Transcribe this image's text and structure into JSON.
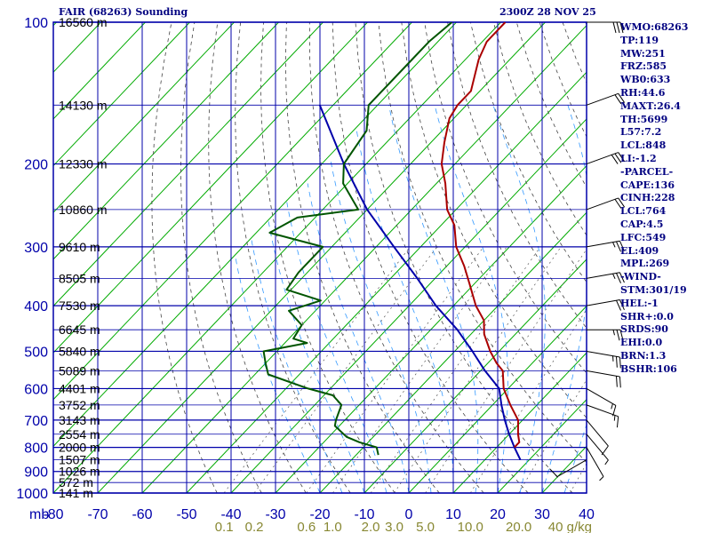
{
  "header": {
    "title": "FAIR (68263) Sounding",
    "timestamp": "2300Z 28 NOV 25"
  },
  "indices": [
    "WMO:68263",
    "TP:119",
    "MW:251",
    "FRZ:585",
    "WB0:633",
    "RH:44.6",
    "MAXT:26.4",
    "TH:5699",
    "L57:7.2",
    "LCL:848",
    "LI:-1.2",
    "-PARCEL-",
    "CAPE:136",
    "CINH:228",
    "LCL:764",
    "CAP:4.5",
    "LFC:549",
    "EL:409",
    "MPL:269",
    "-WIND-",
    "STM:301/19",
    "HEL:-1",
    "SHR+:0.0",
    "SRDS:90",
    "EHI:0.0",
    "BRN:1.3",
    "BSHR:106"
  ],
  "colors": {
    "frame": "#0000aa",
    "text": "#000080",
    "isotherm": "#00aa00",
    "dry_adiabat": "#444444",
    "moist_adiabat": "#3399ff",
    "mixing_ratio": "#555555",
    "temperature": "#aa0000",
    "dewpoint": "#005500",
    "parcel": "#0000aa",
    "wind": "#000000",
    "mixing_ratio_label": "#888833"
  },
  "chart_data": {
    "type": "skew-t",
    "x_axis_label": "mb",
    "pressure_ticks": [
      100,
      200,
      300,
      400,
      500,
      600,
      700,
      800,
      900,
      1000
    ],
    "temperature_ticks": [
      -80,
      -70,
      -60,
      -50,
      -40,
      -30,
      -20,
      -10,
      0,
      10,
      20,
      30,
      40
    ],
    "mixing_ratio_labels": [
      "0.1",
      "0.2",
      "0.6",
      "1.0",
      "2.0",
      "3.0",
      "5.0",
      "10.0",
      "20.0",
      "40 g/kg"
    ],
    "height_labels": [
      {
        "p": 100,
        "h": "16560 m"
      },
      {
        "p": 150,
        "h": "14130 m"
      },
      {
        "p": 200,
        "h": "12330 m"
      },
      {
        "p": 250,
        "h": "10860 m"
      },
      {
        "p": 300,
        "h": "9610 m"
      },
      {
        "p": 350,
        "h": "8505 m"
      },
      {
        "p": 400,
        "h": "7530 m"
      },
      {
        "p": 450,
        "h": "6645 m"
      },
      {
        "p": 500,
        "h": "5840 m"
      },
      {
        "p": 550,
        "h": "5089 m"
      },
      {
        "p": 600,
        "h": "4401 m"
      },
      {
        "p": 650,
        "h": "3752 m"
      },
      {
        "p": 700,
        "h": "3143 m"
      },
      {
        "p": 750,
        "h": "2554 m"
      },
      {
        "p": 800,
        "h": "2000 m"
      },
      {
        "p": 850,
        "h": "1507 m"
      },
      {
        "p": 900,
        "h": "1026 m"
      },
      {
        "p": 950,
        "h": "572 m"
      },
      {
        "p": 1000,
        "h": "141 m"
      }
    ],
    "temperature_profile": [
      [
        100,
        -79
      ],
      [
        110,
        -79
      ],
      [
        120,
        -77
      ],
      [
        140,
        -72
      ],
      [
        150,
        -72
      ],
      [
        160,
        -71
      ],
      [
        180,
        -67
      ],
      [
        200,
        -63
      ],
      [
        220,
        -58
      ],
      [
        250,
        -52
      ],
      [
        270,
        -47
      ],
      [
        300,
        -42
      ],
      [
        330,
        -36
      ],
      [
        360,
        -31
      ],
      [
        400,
        -25
      ],
      [
        430,
        -20
      ],
      [
        460,
        -17
      ],
      [
        500,
        -12
      ],
      [
        530,
        -8
      ],
      [
        550,
        -5
      ],
      [
        600,
        -1
      ],
      [
        650,
        4
      ],
      [
        700,
        9
      ],
      [
        750,
        12
      ],
      [
        780,
        14
      ],
      [
        800,
        14
      ]
    ],
    "dewpoint_profile": [
      [
        100,
        -91
      ],
      [
        110,
        -92
      ],
      [
        120,
        -92
      ],
      [
        150,
        -92
      ],
      [
        170,
        -87
      ],
      [
        200,
        -85
      ],
      [
        220,
        -81
      ],
      [
        250,
        -72
      ],
      [
        260,
        -84
      ],
      [
        280,
        -87
      ],
      [
        300,
        -72
      ],
      [
        340,
        -72
      ],
      [
        370,
        -71
      ],
      [
        390,
        -61
      ],
      [
        410,
        -66
      ],
      [
        440,
        -60
      ],
      [
        470,
        -59
      ],
      [
        480,
        -55
      ],
      [
        500,
        -63
      ],
      [
        530,
        -60
      ],
      [
        560,
        -57
      ],
      [
        600,
        -45
      ],
      [
        620,
        -38
      ],
      [
        650,
        -34
      ],
      [
        700,
        -32
      ],
      [
        720,
        -31
      ],
      [
        760,
        -26
      ],
      [
        780,
        -22
      ],
      [
        800,
        -17
      ],
      [
        830,
        -15
      ]
    ],
    "parcel_profile": [
      [
        150,
        -103
      ],
      [
        200,
        -85
      ],
      [
        250,
        -70
      ],
      [
        300,
        -56
      ],
      [
        350,
        -44
      ],
      [
        400,
        -34
      ],
      [
        450,
        -24
      ],
      [
        500,
        -16
      ],
      [
        550,
        -9
      ],
      [
        600,
        -2
      ],
      [
        650,
        2
      ],
      [
        700,
        6
      ],
      [
        750,
        10
      ],
      [
        800,
        14
      ],
      [
        850,
        18
      ]
    ],
    "wind_barbs": [
      {
        "p": 100,
        "dir": 270,
        "spd": 30
      },
      {
        "p": 150,
        "dir": 250,
        "spd": 20
      },
      {
        "p": 200,
        "dir": 250,
        "spd": 30
      },
      {
        "p": 250,
        "dir": 250,
        "spd": 20
      },
      {
        "p": 300,
        "dir": 260,
        "spd": 25
      },
      {
        "p": 350,
        "dir": 260,
        "spd": 25
      },
      {
        "p": 400,
        "dir": 260,
        "spd": 20
      },
      {
        "p": 450,
        "dir": 270,
        "spd": 25
      },
      {
        "p": 500,
        "dir": 280,
        "spd": 25
      },
      {
        "p": 550,
        "dir": 280,
        "spd": 20
      },
      {
        "p": 600,
        "dir": 300,
        "spd": 15
      },
      {
        "p": 650,
        "dir": 290,
        "spd": 15
      },
      {
        "p": 700,
        "dir": 320,
        "spd": 10
      },
      {
        "p": 750,
        "dir": 320,
        "spd": 5
      },
      {
        "p": 800,
        "dir": 330,
        "spd": 5
      },
      {
        "p": 850,
        "dir": 60,
        "spd": 10
      }
    ]
  }
}
